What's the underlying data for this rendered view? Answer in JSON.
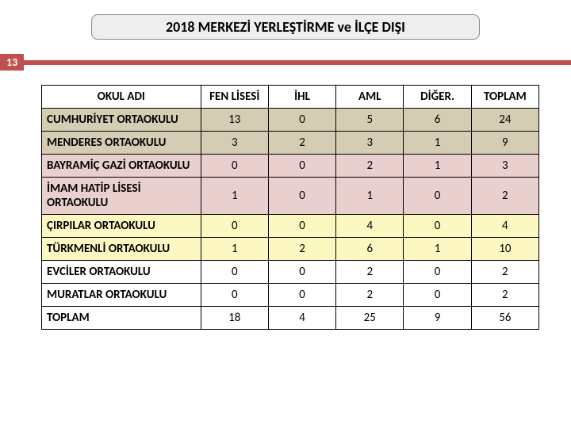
{
  "title": "2018 MERKEZİ YERLEŞTİRME ve İLÇE DIŞI",
  "page_tag": "13",
  "table": {
    "type": "table",
    "columns": [
      "OKUL ADI",
      "FEN LİSESİ",
      "İHL",
      "AML",
      "DİĞER.",
      "TOPLAM"
    ],
    "row_colors": [
      "#d5cdb3",
      "#d5cdb3",
      "#e9d0ce",
      "#e9d0ce",
      "#fdf7c2",
      "#fdf7c2",
      "#ffffff",
      "#ffffff",
      "#ffffff"
    ],
    "header_bg": "#ffffff",
    "border_color": "#000000",
    "name_font_weight": "bold",
    "num_align": "center",
    "rows": [
      {
        "name": "CUMHURİYET ORTAOKULU",
        "fen": "13",
        "ihl": "0",
        "aml": "5",
        "diger": "6",
        "toplam": "24"
      },
      {
        "name": "MENDERES ORTAOKULU",
        "fen": "3",
        "ihl": "2",
        "aml": "3",
        "diger": "1",
        "toplam": "9"
      },
      {
        "name": "BAYRAMİÇ GAZİ ORTAOKULU",
        "fen": "0",
        "ihl": "0",
        "aml": "2",
        "diger": "1",
        "toplam": "3"
      },
      {
        "name": "İMAM HATİP LİSESİ ORTAOKULU",
        "fen": "1",
        "ihl": "0",
        "aml": "1",
        "diger": "0",
        "toplam": "2"
      },
      {
        "name": "ÇIRPILAR ORTAOKULU",
        "fen": "0",
        "ihl": "0",
        "aml": "4",
        "diger": "0",
        "toplam": "4"
      },
      {
        "name": "TÜRKMENLİ ORTAOKULU",
        "fen": "1",
        "ihl": "2",
        "aml": "6",
        "diger": "1",
        "toplam": "10"
      },
      {
        "name": "EVCİLER ORTAOKULU",
        "fen": "0",
        "ihl": "0",
        "aml": "2",
        "diger": "0",
        "toplam": "2"
      },
      {
        "name": "MURATLAR ORTAOKULU",
        "fen": "0",
        "ihl": "0",
        "aml": "2",
        "diger": "0",
        "toplam": "2"
      },
      {
        "name": "TOPLAM",
        "fen": "18",
        "ihl": "4",
        "aml": "25",
        "diger": "9",
        "toplam": "56"
      }
    ]
  },
  "palette": {
    "accent": "#c0504d",
    "title_bg": "#eeeeee",
    "title_border": "#888888"
  }
}
